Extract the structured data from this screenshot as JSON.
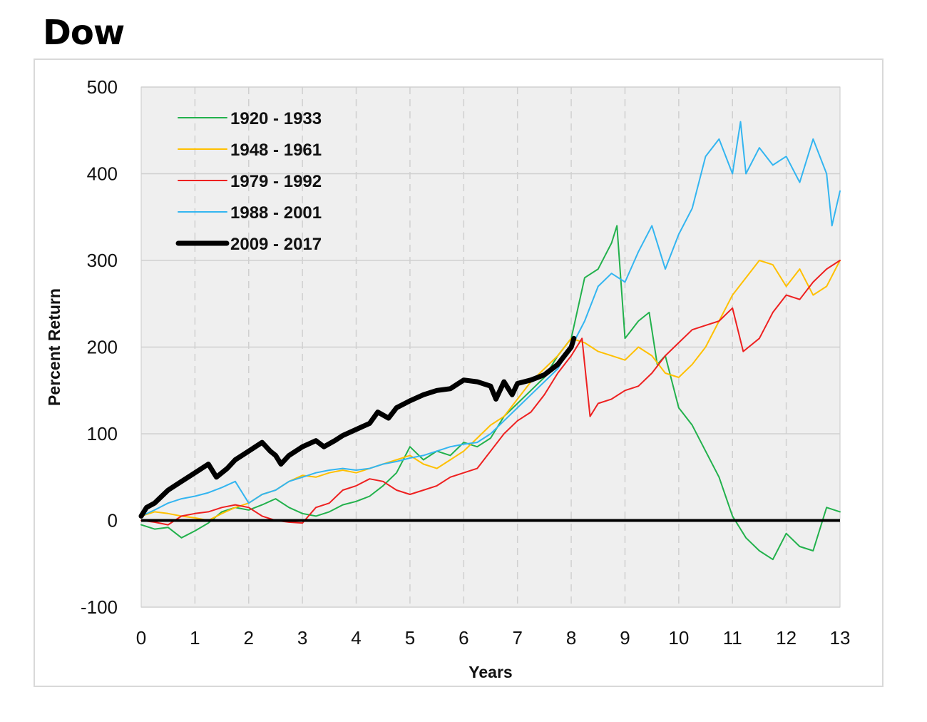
{
  "page": {
    "title": "Dow"
  },
  "chart_data": {
    "type": "line",
    "title": "Dow",
    "xlabel": "Years",
    "ylabel": "Percent Return",
    "xlim": [
      0,
      13
    ],
    "ylim": [
      -100,
      500
    ],
    "xticks": [
      0,
      1,
      2,
      3,
      4,
      5,
      6,
      7,
      8,
      9,
      10,
      11,
      12,
      13
    ],
    "yticks": [
      -100,
      0,
      100,
      200,
      300,
      400,
      500
    ],
    "grid": "vertical dashed, horizontal solid",
    "legend_position": "top-left",
    "baseline": 0,
    "colors": {
      "plot_bg": "#efefef",
      "grid": "#d0d0d0",
      "baseline": "#000000"
    },
    "series": [
      {
        "name": "1920 - 1933",
        "color": "#22b14c",
        "width": 2,
        "x": [
          0,
          0.25,
          0.5,
          0.75,
          1,
          1.25,
          1.5,
          1.75,
          2,
          2.25,
          2.5,
          2.75,
          3,
          3.25,
          3.5,
          3.75,
          4,
          4.25,
          4.5,
          4.75,
          5,
          5.25,
          5.5,
          5.75,
          6,
          6.25,
          6.5,
          6.75,
          7,
          7.25,
          7.5,
          7.75,
          8,
          8.25,
          8.5,
          8.75,
          8.85,
          9,
          9.25,
          9.45,
          9.6,
          9.75,
          10,
          10.25,
          10.5,
          10.75,
          11,
          11.25,
          11.5,
          11.75,
          12,
          12.25,
          12.5,
          12.75,
          13
        ],
        "y": [
          -5,
          -10,
          -8,
          -20,
          -12,
          -3,
          10,
          15,
          12,
          18,
          25,
          15,
          8,
          5,
          10,
          18,
          22,
          28,
          40,
          55,
          85,
          70,
          80,
          75,
          90,
          85,
          95,
          120,
          135,
          150,
          165,
          190,
          210,
          280,
          290,
          320,
          340,
          210,
          230,
          240,
          180,
          190,
          130,
          110,
          80,
          50,
          5,
          -20,
          -35,
          -45,
          -15,
          -30,
          -35,
          15,
          10
        ]
      },
      {
        "name": "1948 - 1961",
        "color": "#ffc000",
        "width": 2,
        "x": [
          0,
          0.25,
          0.5,
          0.75,
          1,
          1.25,
          1.5,
          1.75,
          2,
          2.25,
          2.5,
          2.75,
          3,
          3.25,
          3.5,
          3.75,
          4,
          4.25,
          4.5,
          4.75,
          5,
          5.25,
          5.5,
          5.75,
          6,
          6.25,
          6.5,
          6.75,
          7,
          7.25,
          7.5,
          7.75,
          8,
          8.25,
          8.5,
          8.75,
          9,
          9.25,
          9.5,
          9.75,
          10,
          10.25,
          10.5,
          10.75,
          11,
          11.25,
          11.5,
          11.75,
          12,
          12.25,
          12.5,
          12.75,
          13
        ],
        "y": [
          5,
          10,
          8,
          5,
          3,
          0,
          8,
          15,
          20,
          30,
          35,
          45,
          52,
          50,
          55,
          58,
          55,
          60,
          65,
          70,
          75,
          65,
          60,
          70,
          80,
          95,
          110,
          120,
          140,
          160,
          175,
          190,
          210,
          205,
          195,
          190,
          185,
          200,
          190,
          170,
          165,
          180,
          200,
          230,
          260,
          280,
          300,
          295,
          270,
          290,
          260,
          270,
          300
        ]
      },
      {
        "name": "1979 - 1992",
        "color": "#ee2020",
        "width": 2,
        "x": [
          0,
          0.25,
          0.5,
          0.75,
          1,
          1.25,
          1.5,
          1.75,
          2,
          2.25,
          2.5,
          2.75,
          3,
          3.25,
          3.5,
          3.75,
          4,
          4.25,
          4.5,
          4.75,
          5,
          5.25,
          5.5,
          5.75,
          6,
          6.25,
          6.5,
          6.75,
          7,
          7.25,
          7.5,
          7.75,
          8,
          8.2,
          8.35,
          8.5,
          8.75,
          9,
          9.25,
          9.5,
          9.75,
          10,
          10.25,
          10.5,
          10.75,
          11,
          11.2,
          11.5,
          11.75,
          12,
          12.25,
          12.5,
          12.75,
          13
        ],
        "y": [
          0,
          -2,
          -5,
          5,
          8,
          10,
          15,
          18,
          15,
          5,
          0,
          -2,
          -3,
          15,
          20,
          35,
          40,
          48,
          45,
          35,
          30,
          35,
          40,
          50,
          55,
          60,
          80,
          100,
          115,
          125,
          145,
          170,
          190,
          210,
          120,
          135,
          140,
          150,
          155,
          170,
          190,
          205,
          220,
          225,
          230,
          245,
          195,
          210,
          240,
          260,
          255,
          275,
          290,
          300
        ]
      },
      {
        "name": "1988 - 2001",
        "color": "#33b5f0",
        "width": 2,
        "x": [
          0,
          0.25,
          0.5,
          0.75,
          1,
          1.25,
          1.5,
          1.75,
          2,
          2.25,
          2.5,
          2.75,
          3,
          3.25,
          3.5,
          3.75,
          4,
          4.25,
          4.5,
          4.75,
          5,
          5.25,
          5.5,
          5.75,
          6,
          6.25,
          6.5,
          6.75,
          7,
          7.25,
          7.5,
          7.75,
          8,
          8.25,
          8.5,
          8.75,
          9,
          9.25,
          9.5,
          9.75,
          10,
          10.25,
          10.5,
          10.75,
          11,
          11.15,
          11.25,
          11.5,
          11.75,
          12,
          12.25,
          12.5,
          12.75,
          12.85,
          13
        ],
        "y": [
          5,
          12,
          20,
          25,
          28,
          32,
          38,
          45,
          20,
          30,
          35,
          45,
          50,
          55,
          58,
          60,
          58,
          60,
          65,
          68,
          72,
          75,
          80,
          85,
          88,
          90,
          100,
          115,
          130,
          145,
          160,
          175,
          200,
          230,
          270,
          285,
          275,
          310,
          340,
          290,
          330,
          360,
          420,
          440,
          400,
          460,
          400,
          430,
          410,
          420,
          390,
          440,
          400,
          340,
          380
        ]
      },
      {
        "name": "2009 - 2017",
        "color": "#000000",
        "width": 7,
        "x": [
          0,
          0.1,
          0.25,
          0.5,
          0.75,
          1,
          1.25,
          1.4,
          1.6,
          1.75,
          2,
          2.25,
          2.4,
          2.5,
          2.6,
          2.75,
          3,
          3.25,
          3.4,
          3.6,
          3.75,
          4,
          4.25,
          4.4,
          4.6,
          4.75,
          5,
          5.25,
          5.5,
          5.75,
          6,
          6.25,
          6.5,
          6.6,
          6.75,
          6.9,
          7,
          7.25,
          7.5,
          7.75,
          8,
          8.05
        ],
        "y": [
          5,
          15,
          20,
          35,
          45,
          55,
          65,
          50,
          60,
          70,
          80,
          90,
          80,
          75,
          65,
          75,
          85,
          92,
          85,
          92,
          98,
          105,
          112,
          125,
          118,
          130,
          138,
          145,
          150,
          152,
          162,
          160,
          155,
          140,
          160,
          145,
          158,
          162,
          168,
          180,
          200,
          210
        ]
      }
    ]
  }
}
